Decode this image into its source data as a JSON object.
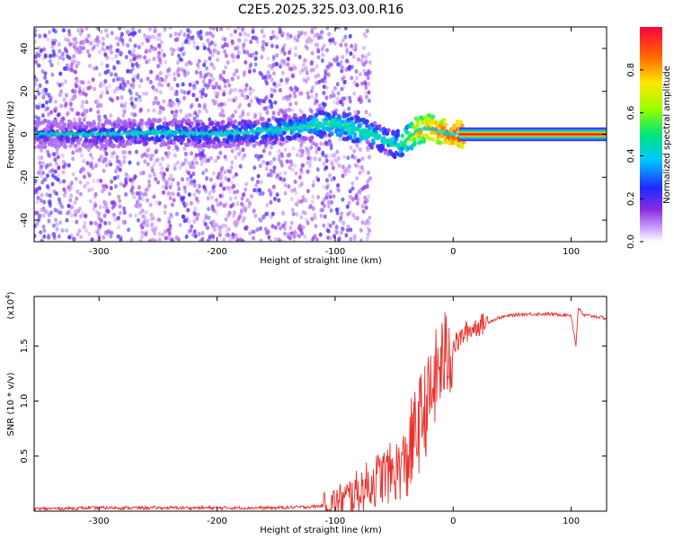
{
  "figure": {
    "title": "C2E5.2025.325.03.00.R16"
  },
  "chart_data": [
    {
      "type": "heatmap",
      "name": "spectrogram",
      "title": "C2E5.2025.325.03.00.R16",
      "xlabel": "Height of straight line (km)",
      "ylabel": "Frequency (Hz)",
      "xlim": [
        -355,
        130
      ],
      "ylim": [
        -50,
        50
      ],
      "xticks": [
        "-300",
        "-200",
        "-100",
        "0",
        "100"
      ],
      "xtick_values": [
        -300,
        -200,
        -100,
        0,
        100
      ],
      "yticks": [
        "-40",
        "-20",
        "0",
        "20",
        "40"
      ],
      "ytick_values": [
        -40,
        -20,
        0,
        20,
        40
      ],
      "colorbar": {
        "label": "Normalized spectral amplitude",
        "ticks": [
          "0.0",
          "0.2",
          "0.4",
          "0.6",
          "0.8"
        ],
        "tick_values": [
          0.0,
          0.2,
          0.4,
          0.6,
          0.8
        ],
        "range": [
          0,
          1
        ]
      },
      "ridge": {
        "description_points_km": [
          -350,
          -300,
          -250,
          -200,
          -150,
          -120,
          -100,
          -80,
          -60,
          -50,
          -40,
          -30,
          -20,
          -10,
          0,
          10,
          130
        ],
        "frequency_hz": [
          0,
          0,
          1,
          0,
          2,
          4,
          5,
          2,
          -2,
          -5,
          -3,
          2,
          3,
          1,
          0,
          0,
          0
        ],
        "amplitude": [
          0.25,
          0.3,
          0.35,
          0.35,
          0.4,
          0.45,
          0.5,
          0.5,
          0.45,
          0.45,
          0.6,
          0.8,
          0.85,
          0.9,
          0.95,
          1.0,
          1.0
        ]
      }
    },
    {
      "type": "line",
      "name": "snr",
      "xlabel": "Height of straight line (km)",
      "ylabel": "SNR (10 * v/v)",
      "exponent_label": "(x10",
      "exponent_sup": "4",
      "exponent_close": ")",
      "xlim": [
        -355,
        130
      ],
      "ylim": [
        0,
        1.95
      ],
      "xticks": [
        "-300",
        "-200",
        "-100",
        "0",
        "100"
      ],
      "xtick_values": [
        -300,
        -200,
        -100,
        0,
        100
      ],
      "yticks": [
        "0.5",
        "1.0",
        "1.5"
      ],
      "ytick_values": [
        0.5,
        1.0,
        1.5
      ],
      "series": [
        {
          "name": "SNR",
          "color": "#e8312c",
          "x": [
            -355,
            -300,
            -250,
            -200,
            -150,
            -120,
            -110,
            -100,
            -90,
            -80,
            -70,
            -60,
            -50,
            -40,
            -35,
            -30,
            -25,
            -20,
            -15,
            -10,
            -5,
            0,
            5,
            10,
            20,
            30,
            40,
            50,
            60,
            80,
            100,
            104,
            106,
            110,
            120,
            130
          ],
          "y": [
            0.02,
            0.03,
            0.03,
            0.03,
            0.03,
            0.04,
            0.05,
            0.08,
            0.12,
            0.18,
            0.25,
            0.32,
            0.35,
            0.45,
            0.6,
            0.75,
            0.9,
            1.0,
            1.2,
            1.35,
            1.42,
            1.5,
            1.55,
            1.62,
            1.68,
            1.72,
            1.76,
            1.78,
            1.79,
            1.79,
            1.78,
            1.5,
            1.85,
            1.78,
            1.77,
            1.75
          ]
        }
      ]
    }
  ],
  "colors": {
    "line": "#e8312c",
    "axis": "#000000"
  }
}
